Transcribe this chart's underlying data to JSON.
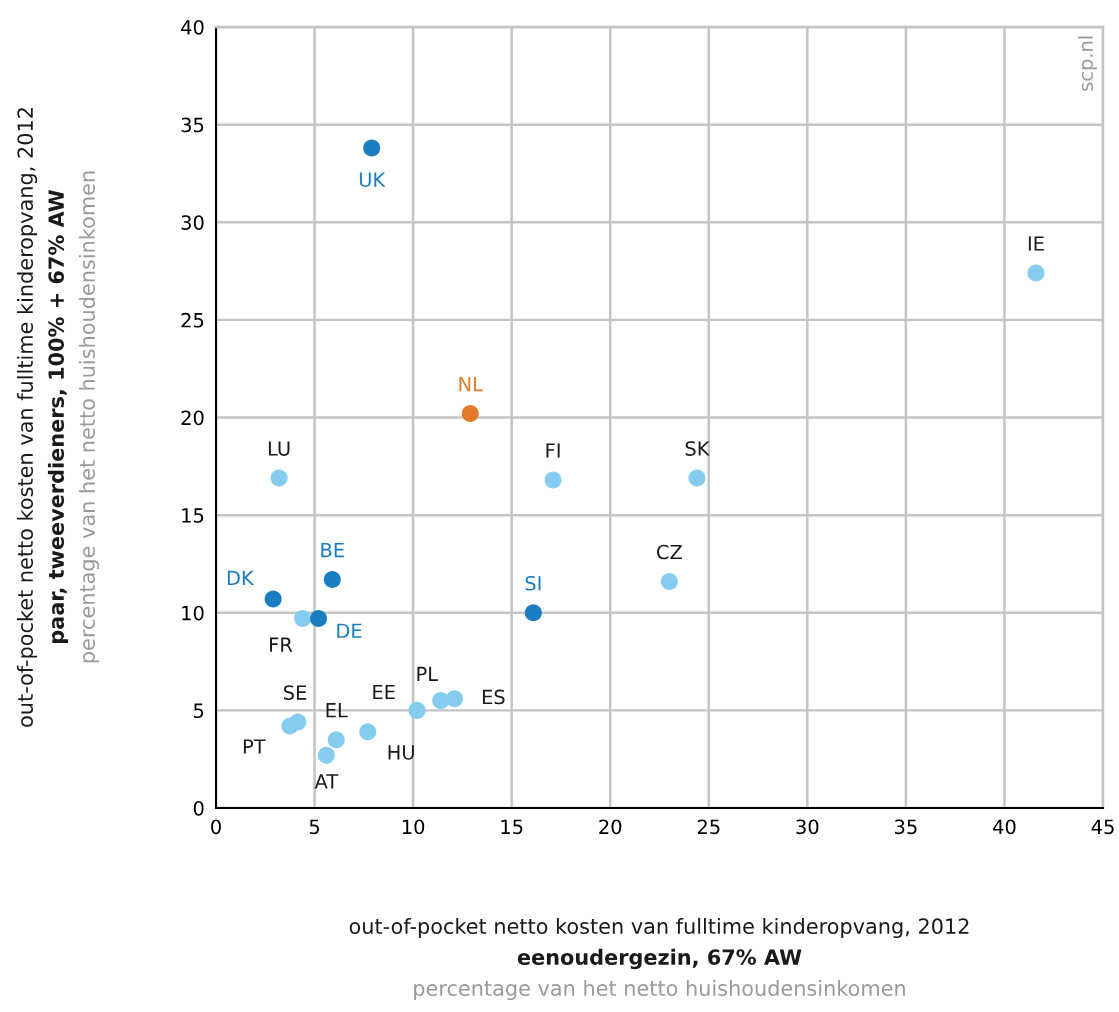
{
  "chart_data": {
    "type": "scatter",
    "xlabel": "out-of-pocket netto kosten van fulltime kinderopvang, 2012\neenoudergezin, 67% AW\npercentage van het netto huishoudensinkomen",
    "ylabel": "out-of-pocket netto kosten van fulltime kinderopvang, 2012\npaar, tweeverdieners, 100% + 67% AW\npercentage van het netto huishoudensinkomen",
    "x": [
      7.9,
      41.6,
      12.9,
      3.2,
      17.1,
      24.4,
      5.9,
      23.0,
      2.9,
      16.1,
      4.4,
      5.2,
      10.2,
      11.4,
      12.1,
      4.15,
      3.75,
      6.1,
      7.7,
      5.6
    ],
    "values": [
      33.8,
      27.4,
      20.2,
      16.9,
      16.8,
      16.9,
      11.7,
      11.6,
      10.7,
      10.0,
      9.7,
      9.7,
      5.0,
      5.5,
      5.6,
      4.4,
      4.2,
      3.5,
      3.9,
      2.7
    ],
    "colors": [
      "#1a7dc1",
      "#85cdef",
      "#e07b2a",
      "#85cdef",
      "#85cdef",
      "#85cdef",
      "#1a7dc1",
      "#85cdef",
      "#1a7dc1",
      "#1a7dc1",
      "#85cdef",
      "#1a7dc1",
      "#85cdef",
      "#85cdef",
      "#85cdef",
      "#85cdef",
      "#85cdef",
      "#85cdef",
      "#85cdef",
      "#85cdef"
    ],
    "annotations": [
      {
        "text": "UK",
        "x": 7.9,
        "y": 33.8
      },
      {
        "text": "IE",
        "x": 41.6,
        "y": 27.4
      },
      {
        "text": "NL",
        "x": 12.9,
        "y": 20.2
      },
      {
        "text": "LU",
        "x": 3.2,
        "y": 16.9
      },
      {
        "text": "FI",
        "x": 17.1,
        "y": 16.8
      },
      {
        "text": "SK",
        "x": 24.4,
        "y": 16.9
      },
      {
        "text": "BE",
        "x": 5.9,
        "y": 11.7
      },
      {
        "text": "CZ",
        "x": 23.0,
        "y": 11.6
      },
      {
        "text": "DK",
        "x": 2.9,
        "y": 10.7
      },
      {
        "text": "SI",
        "x": 16.1,
        "y": 10.0
      },
      {
        "text": "FR",
        "x": 4.4,
        "y": 9.7
      },
      {
        "text": "DE",
        "x": 5.2,
        "y": 9.7
      },
      {
        "text": "EE",
        "x": 10.2,
        "y": 5.0
      },
      {
        "text": "PL",
        "x": 11.4,
        "y": 5.5
      },
      {
        "text": "ES",
        "x": 12.1,
        "y": 5.6
      },
      {
        "text": "SE",
        "x": 4.15,
        "y": 4.4
      },
      {
        "text": "PT",
        "x": 3.75,
        "y": 4.2
      },
      {
        "text": "EL",
        "x": 6.1,
        "y": 3.5
      },
      {
        "text": "HU",
        "x": 7.7,
        "y": 3.9
      },
      {
        "text": "AT",
        "x": 5.6,
        "y": 2.7
      },
      "scp.nl"
    ],
    "xlim": [
      0,
      45
    ],
    "xticks": [
      0,
      5,
      10,
      15,
      20,
      25,
      30,
      35,
      40,
      45
    ],
    "ylim": [
      0,
      40
    ],
    "yticks": [
      0,
      5,
      10,
      15,
      20,
      25,
      30,
      35,
      40
    ],
    "grid": true,
    "marker": "circle"
  }
}
